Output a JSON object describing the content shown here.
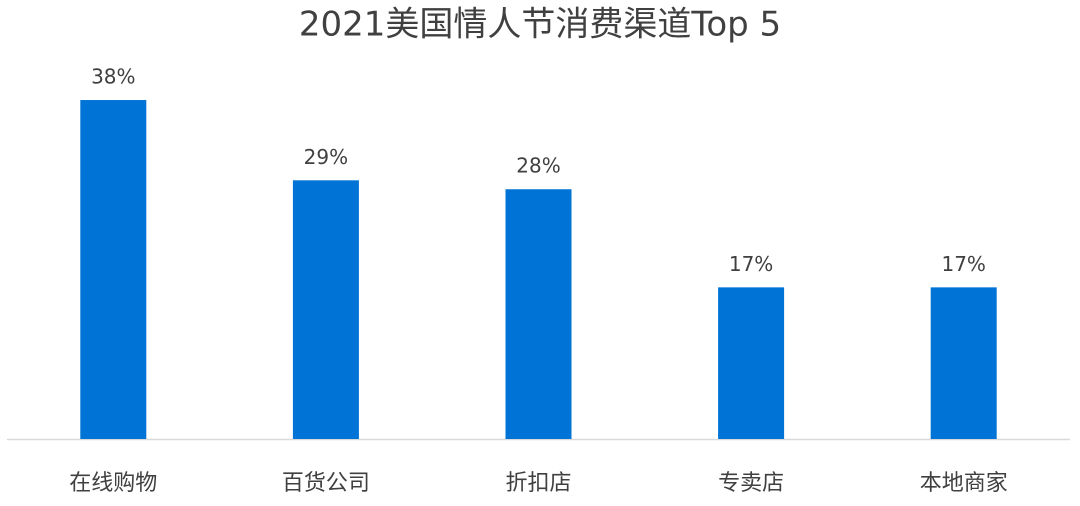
{
  "chart_data": {
    "type": "bar",
    "title": "2021美国情人节消费渠道Top 5",
    "categories": [
      "在线购物",
      "百货公司",
      "折扣店",
      "专卖店",
      "本地商家"
    ],
    "values": [
      38,
      29,
      28,
      17,
      17
    ],
    "value_labels": [
      "38%",
      "29%",
      "28%",
      "17%",
      "17%"
    ],
    "color": "#0073d6"
  }
}
